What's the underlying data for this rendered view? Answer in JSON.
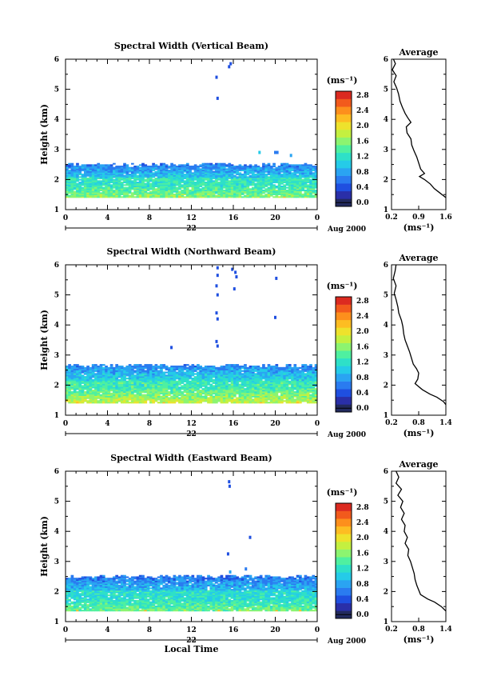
{
  "chart_data": [
    {
      "type": "heatmap",
      "title": "Spectral Width (Vertical Beam)",
      "xlabel": "",
      "ylabel": "Height (km)",
      "xlim": [
        0,
        24
      ],
      "ylim": [
        1,
        6
      ],
      "x_ticks": [
        "0",
        "4",
        "8",
        "12",
        "16",
        "20",
        "0"
      ],
      "y_ticks": [
        "1",
        "2",
        "3",
        "4",
        "5",
        "6"
      ],
      "date_label": "22",
      "month_label": "Aug 2000",
      "colorbar": {
        "unit_label": "(ms⁻¹)",
        "ticks": [
          "0.0",
          "0.4",
          "0.8",
          "1.2",
          "1.6",
          "2.0",
          "2.4",
          "2.8"
        ],
        "range": [
          0,
          3.0
        ]
      },
      "layer": {
        "bottom": 1.4,
        "top": 2.55,
        "core_value": 1.2,
        "near_ground_value": 1.7
      },
      "isolated_echoes": [
        {
          "t": 15.6,
          "h": 5.75,
          "v": 0.6
        },
        {
          "t": 15.75,
          "h": 5.85,
          "v": 0.6
        },
        {
          "t": 14.4,
          "h": 5.4,
          "v": 0.5
        },
        {
          "t": 14.5,
          "h": 4.7,
          "v": 0.5
        },
        {
          "t": 18.5,
          "h": 2.9,
          "v": 1.0
        },
        {
          "t": 20.0,
          "h": 2.9,
          "v": 0.7
        },
        {
          "t": 20.2,
          "h": 2.9,
          "v": 0.7
        },
        {
          "t": 21.5,
          "h": 2.8,
          "v": 0.8
        }
      ],
      "profile": {
        "title": "Average",
        "xlabel": "(ms⁻¹)",
        "x_ticks": [
          "0.2",
          "0.9",
          "1.6"
        ],
        "xlim": [
          0.2,
          1.6
        ],
        "points": [
          [
            0.25,
            6.0
          ],
          [
            0.3,
            5.85
          ],
          [
            0.22,
            5.65
          ],
          [
            0.32,
            5.45
          ],
          [
            0.26,
            5.25
          ],
          [
            0.33,
            5.05
          ],
          [
            0.38,
            4.85
          ],
          [
            0.42,
            4.6
          ],
          [
            0.48,
            4.4
          ],
          [
            0.55,
            4.2
          ],
          [
            0.62,
            4.05
          ],
          [
            0.7,
            3.9
          ],
          [
            0.58,
            3.75
          ],
          [
            0.6,
            3.55
          ],
          [
            0.7,
            3.35
          ],
          [
            0.72,
            3.15
          ],
          [
            0.78,
            2.95
          ],
          [
            0.85,
            2.75
          ],
          [
            0.9,
            2.55
          ],
          [
            0.95,
            2.35
          ],
          [
            1.05,
            2.2
          ],
          [
            0.92,
            2.1
          ],
          [
            1.05,
            2.0
          ],
          [
            1.2,
            1.85
          ],
          [
            1.3,
            1.7
          ],
          [
            1.45,
            1.55
          ],
          [
            1.6,
            1.4
          ]
        ]
      }
    },
    {
      "type": "heatmap",
      "title": "Spectral Width (Northward Beam)",
      "xlabel": "",
      "ylabel": "Height (km)",
      "xlim": [
        0,
        24
      ],
      "ylim": [
        1,
        6
      ],
      "x_ticks": [
        "0",
        "4",
        "8",
        "12",
        "16",
        "20",
        "0"
      ],
      "y_ticks": [
        "1",
        "2",
        "3",
        "4",
        "5",
        "6"
      ],
      "date_label": "22",
      "month_label": "Aug 2000",
      "colorbar": {
        "unit_label": "(ms⁻¹)",
        "ticks": [
          "0.0",
          "0.4",
          "0.8",
          "1.2",
          "1.6",
          "2.0",
          "2.4",
          "2.8"
        ],
        "range": [
          0,
          3.0
        ]
      },
      "layer": {
        "bottom": 1.4,
        "top": 2.7,
        "core_value": 1.25,
        "near_ground_value": 1.9
      },
      "isolated_echoes": [
        {
          "t": 14.5,
          "h": 5.9,
          "v": 0.5
        },
        {
          "t": 14.5,
          "h": 5.65,
          "v": 0.5
        },
        {
          "t": 14.4,
          "h": 5.3,
          "v": 0.5
        },
        {
          "t": 14.5,
          "h": 5.0,
          "v": 0.5
        },
        {
          "t": 14.4,
          "h": 4.4,
          "v": 0.5
        },
        {
          "t": 14.5,
          "h": 4.2,
          "v": 0.5
        },
        {
          "t": 14.4,
          "h": 3.45,
          "v": 0.5
        },
        {
          "t": 14.5,
          "h": 3.3,
          "v": 0.5
        },
        {
          "t": 15.9,
          "h": 5.85,
          "v": 0.6
        },
        {
          "t": 16.2,
          "h": 5.75,
          "v": 0.6
        },
        {
          "t": 16.3,
          "h": 5.6,
          "v": 0.6
        },
        {
          "t": 16.1,
          "h": 5.2,
          "v": 0.6
        },
        {
          "t": 20.1,
          "h": 5.55,
          "v": 0.5
        },
        {
          "t": 20.0,
          "h": 4.25,
          "v": 0.5
        },
        {
          "t": 10.1,
          "h": 3.25,
          "v": 0.5
        }
      ],
      "profile": {
        "title": "Average",
        "xlabel": "(ms⁻¹)",
        "x_ticks": [
          "0.2",
          "0.8",
          "1.4"
        ],
        "xlim": [
          0.2,
          1.4
        ],
        "points": [
          [
            0.3,
            6.0
          ],
          [
            0.28,
            5.8
          ],
          [
            0.24,
            5.55
          ],
          [
            0.3,
            5.3
          ],
          [
            0.26,
            5.05
          ],
          [
            0.3,
            4.85
          ],
          [
            0.34,
            4.6
          ],
          [
            0.36,
            4.4
          ],
          [
            0.42,
            4.15
          ],
          [
            0.45,
            3.95
          ],
          [
            0.47,
            3.7
          ],
          [
            0.5,
            3.5
          ],
          [
            0.55,
            3.3
          ],
          [
            0.6,
            3.1
          ],
          [
            0.64,
            2.9
          ],
          [
            0.68,
            2.7
          ],
          [
            0.75,
            2.55
          ],
          [
            0.8,
            2.4
          ],
          [
            0.78,
            2.2
          ],
          [
            0.72,
            2.05
          ],
          [
            0.88,
            1.85
          ],
          [
            1.05,
            1.7
          ],
          [
            1.2,
            1.6
          ],
          [
            1.35,
            1.45
          ],
          [
            1.4,
            1.35
          ]
        ]
      }
    },
    {
      "type": "heatmap",
      "title": "Spectral Width (Eastward Beam)",
      "xlabel": "Local Time",
      "ylabel": "Height (km)",
      "xlim": [
        0,
        24
      ],
      "ylim": [
        1,
        6
      ],
      "x_ticks": [
        "0",
        "4",
        "8",
        "12",
        "16",
        "20",
        "0"
      ],
      "y_ticks": [
        "1",
        "2",
        "3",
        "4",
        "5",
        "6"
      ],
      "date_label": "22",
      "month_label": "Aug 2000",
      "colorbar": {
        "unit_label": "(ms⁻¹)",
        "ticks": [
          "0.0",
          "0.4",
          "0.8",
          "1.2",
          "1.6",
          "2.0",
          "2.4",
          "2.8"
        ],
        "range": [
          0,
          3.0
        ]
      },
      "layer": {
        "bottom": 1.35,
        "top": 2.55,
        "core_value": 1.1,
        "near_ground_value": 1.6
      },
      "isolated_echoes": [
        {
          "t": 15.6,
          "h": 5.65,
          "v": 0.5
        },
        {
          "t": 15.65,
          "h": 5.5,
          "v": 0.5
        },
        {
          "t": 17.6,
          "h": 3.8,
          "v": 0.6
        },
        {
          "t": 15.5,
          "h": 3.25,
          "v": 0.6
        },
        {
          "t": 17.2,
          "h": 2.75,
          "v": 0.7
        },
        {
          "t": 15.7,
          "h": 2.65,
          "v": 0.8
        }
      ],
      "profile": {
        "title": "Average",
        "xlabel": "(ms⁻¹)",
        "x_ticks": [
          "0.2",
          "0.8",
          "1.4"
        ],
        "xlim": [
          0.2,
          1.4
        ],
        "points": [
          [
            0.3,
            6.0
          ],
          [
            0.36,
            5.8
          ],
          [
            0.3,
            5.6
          ],
          [
            0.42,
            5.4
          ],
          [
            0.34,
            5.2
          ],
          [
            0.45,
            5.0
          ],
          [
            0.4,
            4.8
          ],
          [
            0.48,
            4.6
          ],
          [
            0.42,
            4.4
          ],
          [
            0.5,
            4.2
          ],
          [
            0.48,
            4.0
          ],
          [
            0.55,
            3.8
          ],
          [
            0.5,
            3.6
          ],
          [
            0.58,
            3.4
          ],
          [
            0.56,
            3.2
          ],
          [
            0.62,
            3.0
          ],
          [
            0.66,
            2.8
          ],
          [
            0.7,
            2.6
          ],
          [
            0.72,
            2.4
          ],
          [
            0.76,
            2.2
          ],
          [
            0.8,
            2.05
          ],
          [
            0.84,
            1.9
          ],
          [
            1.0,
            1.75
          ],
          [
            1.15,
            1.65
          ],
          [
            1.3,
            1.5
          ],
          [
            1.4,
            1.35
          ]
        ]
      }
    }
  ]
}
